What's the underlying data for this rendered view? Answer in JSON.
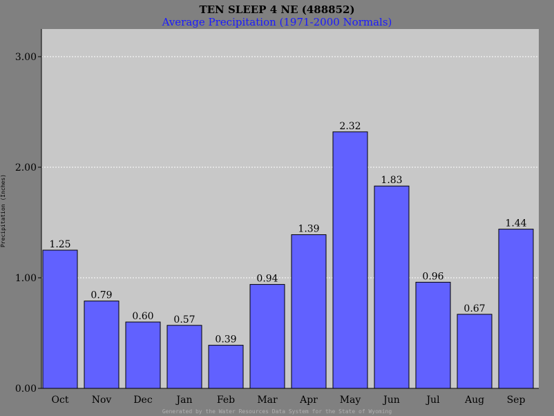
{
  "chart_data": {
    "type": "bar",
    "title": "TEN SLEEP 4 NE (488852)",
    "subtitle": "Average Precipitation (1971-2000 Normals)",
    "ylabel": "Precipitation (Inches)",
    "xlabel": "",
    "categories": [
      "Oct",
      "Nov",
      "Dec",
      "Jan",
      "Feb",
      "Mar",
      "Apr",
      "May",
      "Jun",
      "Jul",
      "Aug",
      "Sep"
    ],
    "values": [
      1.25,
      0.79,
      0.6,
      0.57,
      0.39,
      0.94,
      1.39,
      2.32,
      1.83,
      0.96,
      0.67,
      1.44
    ],
    "value_labels": [
      "1.25",
      "0.79",
      "0.60",
      "0.57",
      "0.39",
      "0.94",
      "1.39",
      "2.32",
      "1.83",
      "0.96",
      "0.67",
      "1.44"
    ],
    "ylim": [
      0,
      3.0
    ],
    "yticks": [
      0,
      1,
      2,
      3
    ],
    "ytick_labels": [
      "0.00",
      "1.00",
      "2.00",
      "3.00"
    ],
    "grid": true,
    "legend": "none",
    "colors": {
      "bar": "#6161ff",
      "plot_background": "#c8c8c8",
      "outer_background": "#808080",
      "subtitle": "#1a1aff",
      "grid": "#ffffff"
    }
  },
  "footer": "Generated by the Water Resources Data System for the State of Wyoming"
}
